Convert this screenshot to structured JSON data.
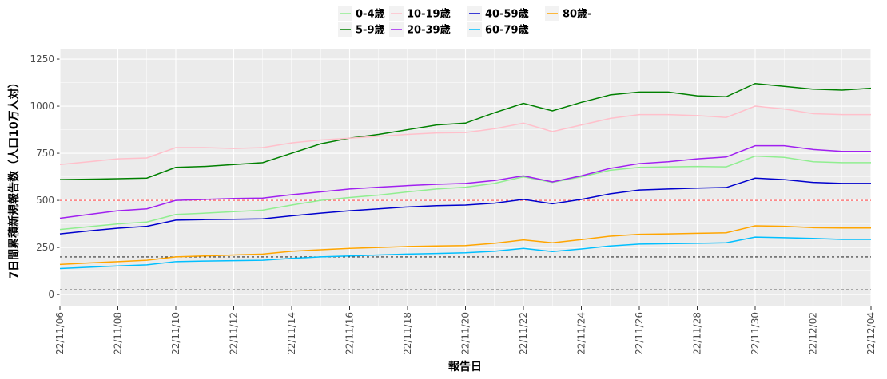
{
  "chart_data": {
    "type": "line",
    "x_label": "報告日",
    "y_label": "7日間累積新規報告数（人口10万人対）",
    "categories": [
      "22/11/06",
      null,
      "22/11/08",
      null,
      "22/11/10",
      null,
      "22/11/12",
      null,
      "22/11/14",
      null,
      "22/11/16",
      null,
      "22/11/18",
      null,
      "22/11/20",
      null,
      "22/11/22",
      null,
      "22/11/24",
      null,
      "22/11/26",
      null,
      "22/11/28",
      null,
      "22/11/30",
      null,
      "22/12/02",
      null,
      "22/12/04"
    ],
    "series": [
      {
        "name": "0-4歳",
        "color": "#90ee90",
        "values": [
          345,
          360,
          375,
          385,
          425,
          432,
          440,
          448,
          475,
          500,
          515,
          528,
          545,
          560,
          570,
          590,
          625,
          595,
          625,
          660,
          675,
          678,
          680,
          678,
          735,
          728,
          705,
          700,
          700
        ]
      },
      {
        "name": "5-9歳",
        "color": "#008000",
        "values": [
          610,
          612,
          615,
          618,
          675,
          680,
          690,
          700,
          750,
          800,
          830,
          850,
          875,
          900,
          910,
          965,
          1015,
          975,
          1020,
          1060,
          1075,
          1075,
          1055,
          1050,
          1120,
          1105,
          1090,
          1085,
          1095
        ]
      },
      {
        "name": "10-19歳",
        "color": "#ffc0cb",
        "values": [
          690,
          705,
          720,
          725,
          780,
          780,
          775,
          780,
          805,
          820,
          830,
          840,
          850,
          858,
          860,
          880,
          910,
          865,
          900,
          935,
          955,
          955,
          950,
          940,
          1000,
          985,
          960,
          955,
          955
        ]
      },
      {
        "name": "20-39歳",
        "color": "#a020f0",
        "values": [
          405,
          425,
          445,
          455,
          500,
          505,
          510,
          512,
          530,
          545,
          560,
          570,
          578,
          585,
          590,
          605,
          630,
          598,
          630,
          670,
          695,
          705,
          720,
          730,
          790,
          790,
          770,
          760,
          760
        ]
      },
      {
        "name": "40-59歳",
        "color": "#0000cd",
        "values": [
          322,
          338,
          352,
          362,
          395,
          398,
          400,
          402,
          418,
          432,
          445,
          455,
          465,
          472,
          475,
          485,
          505,
          482,
          505,
          535,
          555,
          560,
          565,
          568,
          618,
          610,
          595,
          590,
          590
        ]
      },
      {
        "name": "60-79歳",
        "color": "#00bfff",
        "values": [
          138,
          145,
          152,
          158,
          175,
          178,
          180,
          182,
          192,
          200,
          205,
          210,
          215,
          218,
          222,
          230,
          245,
          228,
          242,
          258,
          268,
          270,
          272,
          275,
          305,
          302,
          298,
          293,
          293
        ]
      },
      {
        "name": "80歳-",
        "color": "#ffa500",
        "values": [
          160,
          168,
          175,
          182,
          200,
          205,
          210,
          215,
          230,
          238,
          245,
          250,
          255,
          258,
          260,
          272,
          290,
          275,
          292,
          310,
          320,
          322,
          325,
          328,
          365,
          362,
          355,
          353,
          353
        ]
      }
    ],
    "hlines": [
      {
        "value": 500,
        "color": "#ff6666"
      },
      {
        "value": 200,
        "color": "#333333"
      },
      {
        "value": 25,
        "color": "#333333"
      }
    ],
    "ylim": [
      -63,
      1301
    ],
    "yticks": [
      0,
      250,
      500,
      750,
      1000,
      1250
    ],
    "grid": true,
    "legend": "top"
  }
}
